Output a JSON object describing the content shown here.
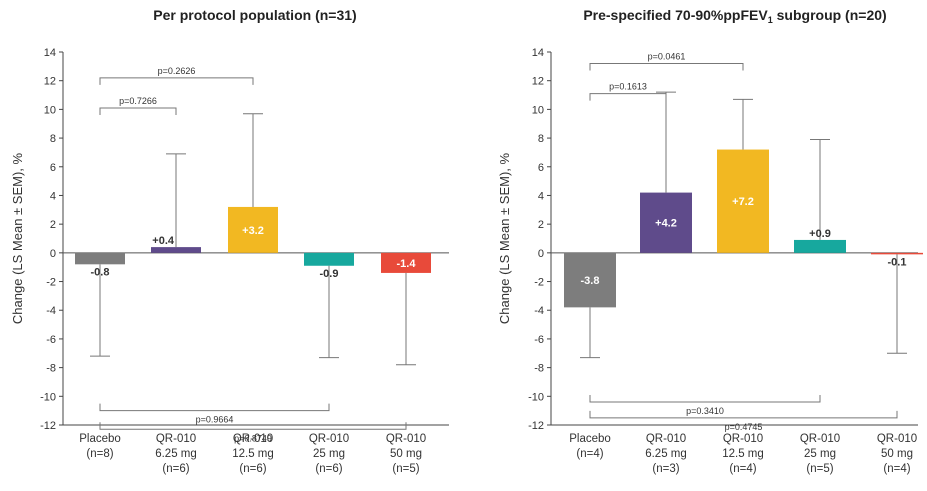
{
  "chart_data": [
    {
      "type": "bar",
      "title": "Per protocol population (n=31)",
      "ylabel": "Change (LS Mean ± SEM), %",
      "ylim": [
        -12,
        14
      ],
      "yticks": [
        -12,
        -10,
        -8,
        -6,
        -4,
        -2,
        0,
        2,
        4,
        6,
        8,
        10,
        12,
        14
      ],
      "categories": [
        {
          "lines": [
            "Placebo",
            "(n=8)"
          ]
        },
        {
          "lines": [
            "QR-010",
            "6.25 mg",
            "(n=6)"
          ]
        },
        {
          "lines": [
            "QR-010",
            "12.5 mg",
            "(n=6)"
          ]
        },
        {
          "lines": [
            "QR-010",
            "25 mg",
            "(n=6)"
          ]
        },
        {
          "lines": [
            "QR-010",
            "50 mg",
            "(n=5)"
          ]
        }
      ],
      "values": [
        -0.8,
        0.4,
        3.2,
        -0.9,
        -1.4
      ],
      "value_labels": [
        "-0.8",
        "+0.4",
        "+3.2",
        "-0.9",
        "-1.4"
      ],
      "error_ends": [
        -7.2,
        6.9,
        9.7,
        -7.3,
        -7.8
      ],
      "colors": [
        "#7d7d7d",
        "#5f4b8b",
        "#f2b822",
        "#17a89e",
        "#e84a3a"
      ],
      "comparisons": [
        {
          "from": 0,
          "to": 2,
          "label": "p=0.2626",
          "above": true,
          "level": 2
        },
        {
          "from": 0,
          "to": 1,
          "label": "p=0.7266",
          "above": true,
          "level": 1
        },
        {
          "from": 0,
          "to": 3,
          "label": "p=0.9664",
          "above": false,
          "level": 1
        },
        {
          "from": 0,
          "to": 4,
          "label": "p=0.8749",
          "above": false,
          "level": 2
        }
      ]
    },
    {
      "type": "bar",
      "title": "Pre-specified 70-90%ppFEV",
      "title_sub": "1",
      "title_end": " subgroup (n=20)",
      "ylabel": "Change (LS Mean ± SEM), %",
      "ylim": [
        -12,
        14
      ],
      "yticks": [
        -12,
        -10,
        -8,
        -6,
        -4,
        -2,
        0,
        2,
        4,
        6,
        8,
        10,
        12,
        14
      ],
      "categories": [
        {
          "lines": [
            "Placebo",
            "(n=4)"
          ]
        },
        {
          "lines": [
            "QR-010",
            "6.25 mg",
            "(n=3)"
          ]
        },
        {
          "lines": [
            "QR-010",
            "12.5 mg",
            "(n=4)"
          ]
        },
        {
          "lines": [
            "QR-010",
            "25 mg",
            "(n=5)"
          ]
        },
        {
          "lines": [
            "QR-010",
            "50 mg",
            "(n=4)"
          ]
        }
      ],
      "values": [
        -3.8,
        4.2,
        7.2,
        0.9,
        -0.1
      ],
      "value_labels": [
        "-3.8",
        "+4.2",
        "+7.2",
        "+0.9",
        "-0.1"
      ],
      "error_ends": [
        -7.3,
        11.2,
        10.7,
        7.9,
        -7.0
      ],
      "colors": [
        "#7d7d7d",
        "#5f4b8b",
        "#f2b822",
        "#17a89e",
        "#e84a3a"
      ],
      "comparisons": [
        {
          "from": 0,
          "to": 2,
          "label": "p=0.0461",
          "above": true,
          "level": 2
        },
        {
          "from": 0,
          "to": 1,
          "label": "p=0.1613",
          "above": true,
          "level": 1
        },
        {
          "from": 0,
          "to": 3,
          "label": "p=0.3410",
          "above": false,
          "level": 1
        },
        {
          "from": 0,
          "to": 4,
          "label": "p=0.4745",
          "above": false,
          "level": 2
        }
      ]
    }
  ]
}
